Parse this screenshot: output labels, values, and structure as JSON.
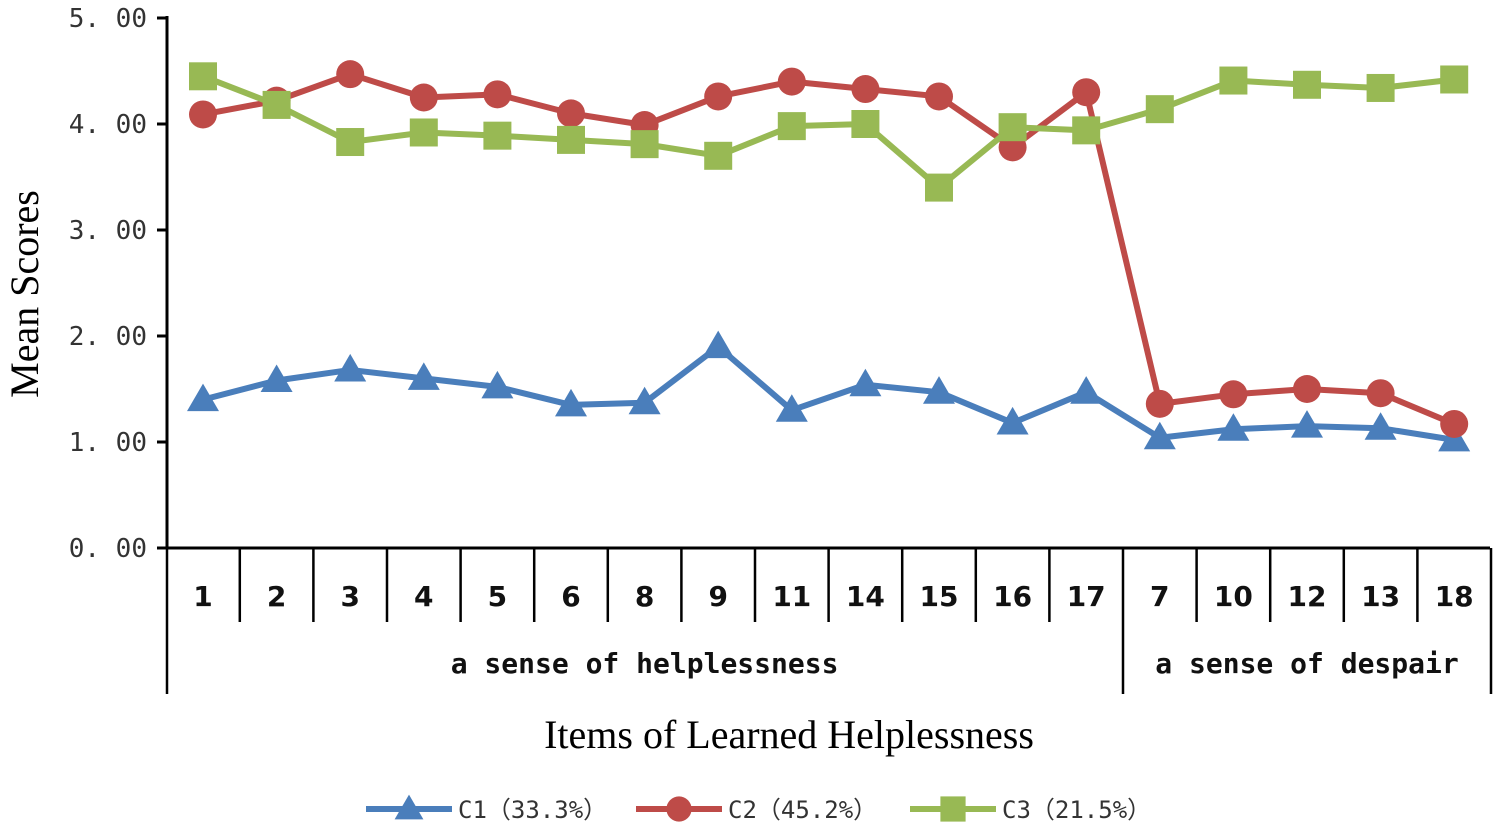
{
  "chart_data": {
    "type": "line",
    "xlabel": "Items of Learned Helplessness",
    "ylabel": "Mean Scores",
    "ylim": [
      0,
      5
    ],
    "y_ticks": [
      "0. 00",
      "1. 00",
      "2. 00",
      "3. 00",
      "4. 00",
      "5. 00"
    ],
    "categories": [
      "1",
      "2",
      "3",
      "4",
      "5",
      "6",
      "8",
      "9",
      "11",
      "14",
      "15",
      "16",
      "17",
      "7",
      "10",
      "12",
      "13",
      "18"
    ],
    "groups": [
      {
        "label": "a sense of helplessness",
        "from": 0,
        "to": 12
      },
      {
        "label": "a sense of despair",
        "from": 13,
        "to": 17
      }
    ],
    "series": [
      {
        "name": "C1（33.3%）",
        "color": "#4a7ebb",
        "marker": "triangle",
        "values": [
          1.4,
          1.58,
          1.68,
          1.6,
          1.52,
          1.35,
          1.37,
          1.9,
          1.3,
          1.54,
          1.47,
          1.18,
          1.47,
          1.04,
          1.12,
          1.15,
          1.13,
          1.02
        ]
      },
      {
        "name": "C2（45.2%）",
        "color": "#be4b48",
        "marker": "circle",
        "values": [
          4.09,
          4.22,
          4.47,
          4.25,
          4.28,
          4.1,
          3.99,
          4.26,
          4.4,
          4.33,
          4.26,
          3.78,
          4.3,
          1.36,
          1.45,
          1.5,
          1.46,
          1.17
        ]
      },
      {
        "name": "C3（21.5%）",
        "color": "#98b954",
        "marker": "square",
        "values": [
          4.45,
          4.18,
          3.83,
          3.92,
          3.89,
          3.85,
          3.81,
          3.7,
          3.98,
          4.0,
          3.4,
          3.97,
          3.94,
          4.14,
          4.41,
          4.37,
          4.34,
          4.42
        ]
      }
    ],
    "legend_position": "bottom"
  }
}
